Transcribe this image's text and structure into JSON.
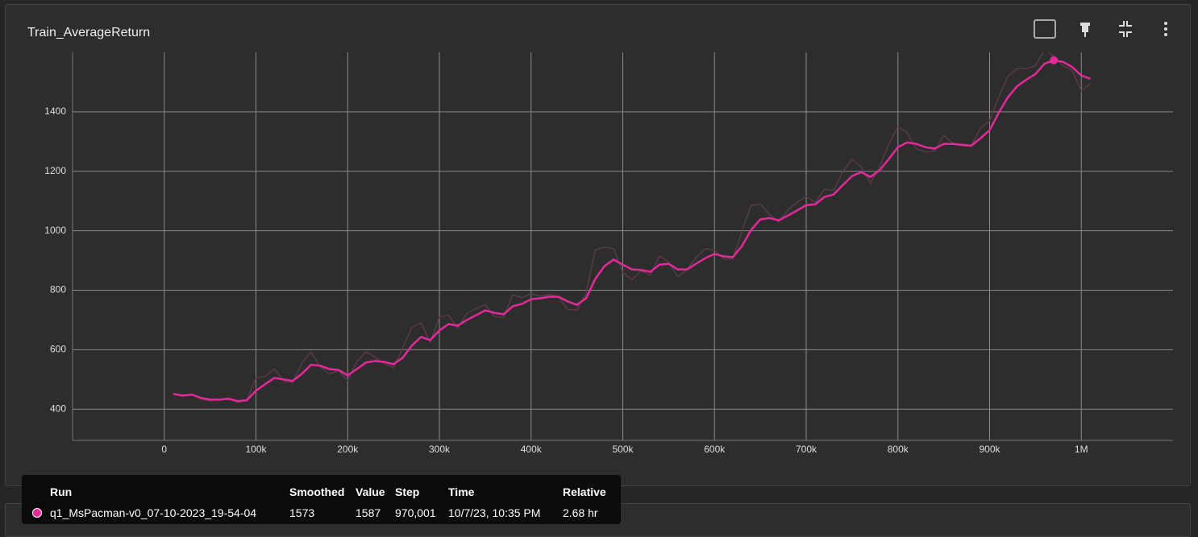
{
  "chart_data": {
    "type": "line",
    "title": "Train_AverageReturn",
    "x": [
      10000,
      20000,
      30000,
      40000,
      50000,
      60000,
      70000,
      80000,
      90000,
      100000,
      110000,
      120000,
      130000,
      140000,
      150000,
      160000,
      170000,
      180000,
      190000,
      200000,
      210000,
      220000,
      230000,
      240000,
      250000,
      260000,
      270000,
      280000,
      290000,
      300000,
      310000,
      320000,
      330000,
      340000,
      350000,
      360000,
      370000,
      380000,
      390000,
      400000,
      410000,
      420000,
      430000,
      440000,
      450000,
      460000,
      470000,
      480000,
      490000,
      500000,
      510000,
      520000,
      530000,
      540000,
      550000,
      560000,
      570000,
      580000,
      590000,
      600000,
      610000,
      620000,
      630000,
      640000,
      650000,
      660000,
      670000,
      680000,
      690000,
      700000,
      710000,
      720000,
      730000,
      740000,
      750000,
      760000,
      770000,
      780000,
      790000,
      800000,
      810000,
      820000,
      830000,
      840000,
      850000,
      860000,
      870000,
      880000,
      890000,
      900000,
      910000,
      920000,
      930000,
      940000,
      950000,
      960000,
      970000,
      980000,
      990000,
      1000000,
      1010000
    ],
    "series": [
      {
        "color": "#e5299a",
        "values": [
          451,
          446,
          449,
          438,
          432,
          432,
          435,
          427,
          430,
          462,
          484,
          505,
          500,
          495,
          519,
          549,
          546,
          535,
          532,
          514,
          535,
          557,
          562,
          559,
          551,
          573,
          614,
          643,
          632,
          665,
          686,
          681,
          700,
          716,
          732,
          724,
          719,
          746,
          754,
          770,
          773,
          778,
          778,
          762,
          751,
          773,
          838,
          881,
          903,
          886,
          870,
          868,
          862,
          886,
          889,
          870,
          870,
          889,
          908,
          922,
          914,
          911,
          949,
          1003,
          1038,
          1043,
          1035,
          1051,
          1068,
          1086,
          1089,
          1114,
          1122,
          1154,
          1184,
          1197,
          1181,
          1203,
          1241,
          1281,
          1297,
          1292,
          1281,
          1276,
          1292,
          1292,
          1289,
          1286,
          1311,
          1338,
          1397,
          1449,
          1486,
          1508,
          1527,
          1562,
          1573,
          1568,
          1551,
          1522,
          1511
        ]
      },
      {
        "color": "#5a3a4a",
        "values": [
          451,
          443,
          451,
          434,
          428,
          432,
          437,
          422,
          432,
          505,
          510,
          535,
          495,
          490,
          555,
          592,
          543,
          518,
          530,
          497,
          560,
          593,
          575,
          553,
          540,
          605,
          675,
          690,
          625,
          710,
          717,
          672,
          722,
          738,
          752,
          712,
          708,
          785,
          775,
          788,
          780,
          785,
          778,
          735,
          733,
          790,
          935,
          945,
          940,
          860,
          835,
          865,
          850,
          915,
          895,
          845,
          870,
          910,
          940,
          935,
          905,
          905,
          1000,
          1085,
          1090,
          1055,
          1030,
          1070,
          1095,
          1115,
          1095,
          1140,
          1135,
          1200,
          1240,
          1215,
          1160,
          1215,
          1290,
          1350,
          1330,
          1275,
          1265,
          1268,
          1320,
          1295,
          1285,
          1285,
          1345,
          1370,
          1450,
          1520,
          1545,
          1545,
          1555,
          1610,
          1587,
          1555,
          1540,
          1470,
          1495
        ]
      }
    ],
    "xlim": [
      -100000,
      1100000
    ],
    "ylim": [
      295,
      1600
    ],
    "xticks": [
      0,
      {
        "value": 100000,
        "label": "100k"
      },
      {
        "value": 200000,
        "label": "200k"
      },
      {
        "value": 300000,
        "label": "300k"
      },
      {
        "value": 400000,
        "label": "400k"
      },
      {
        "value": 500000,
        "label": "500k"
      },
      {
        "value": 600000,
        "label": "600k"
      },
      {
        "value": 700000,
        "label": "700k"
      },
      {
        "value": 800000,
        "label": "800k"
      },
      {
        "value": 900000,
        "label": "900k"
      },
      {
        "value": 1000000,
        "label": "1M"
      }
    ],
    "yticks": [
      400,
      600,
      800,
      1000,
      1200,
      1400
    ],
    "grid": true
  },
  "tooltip": {
    "headers": [
      "Run",
      "Smoothed",
      "Value",
      "Step",
      "Time",
      "Relative"
    ],
    "run": "q1_MsPacman-v0_07-10-2023_19-54-04",
    "smoothed": 1573,
    "value": 1587,
    "step": "970,001",
    "time": "10/7/23, 10:35 PM",
    "relative": "2.68 hr"
  }
}
